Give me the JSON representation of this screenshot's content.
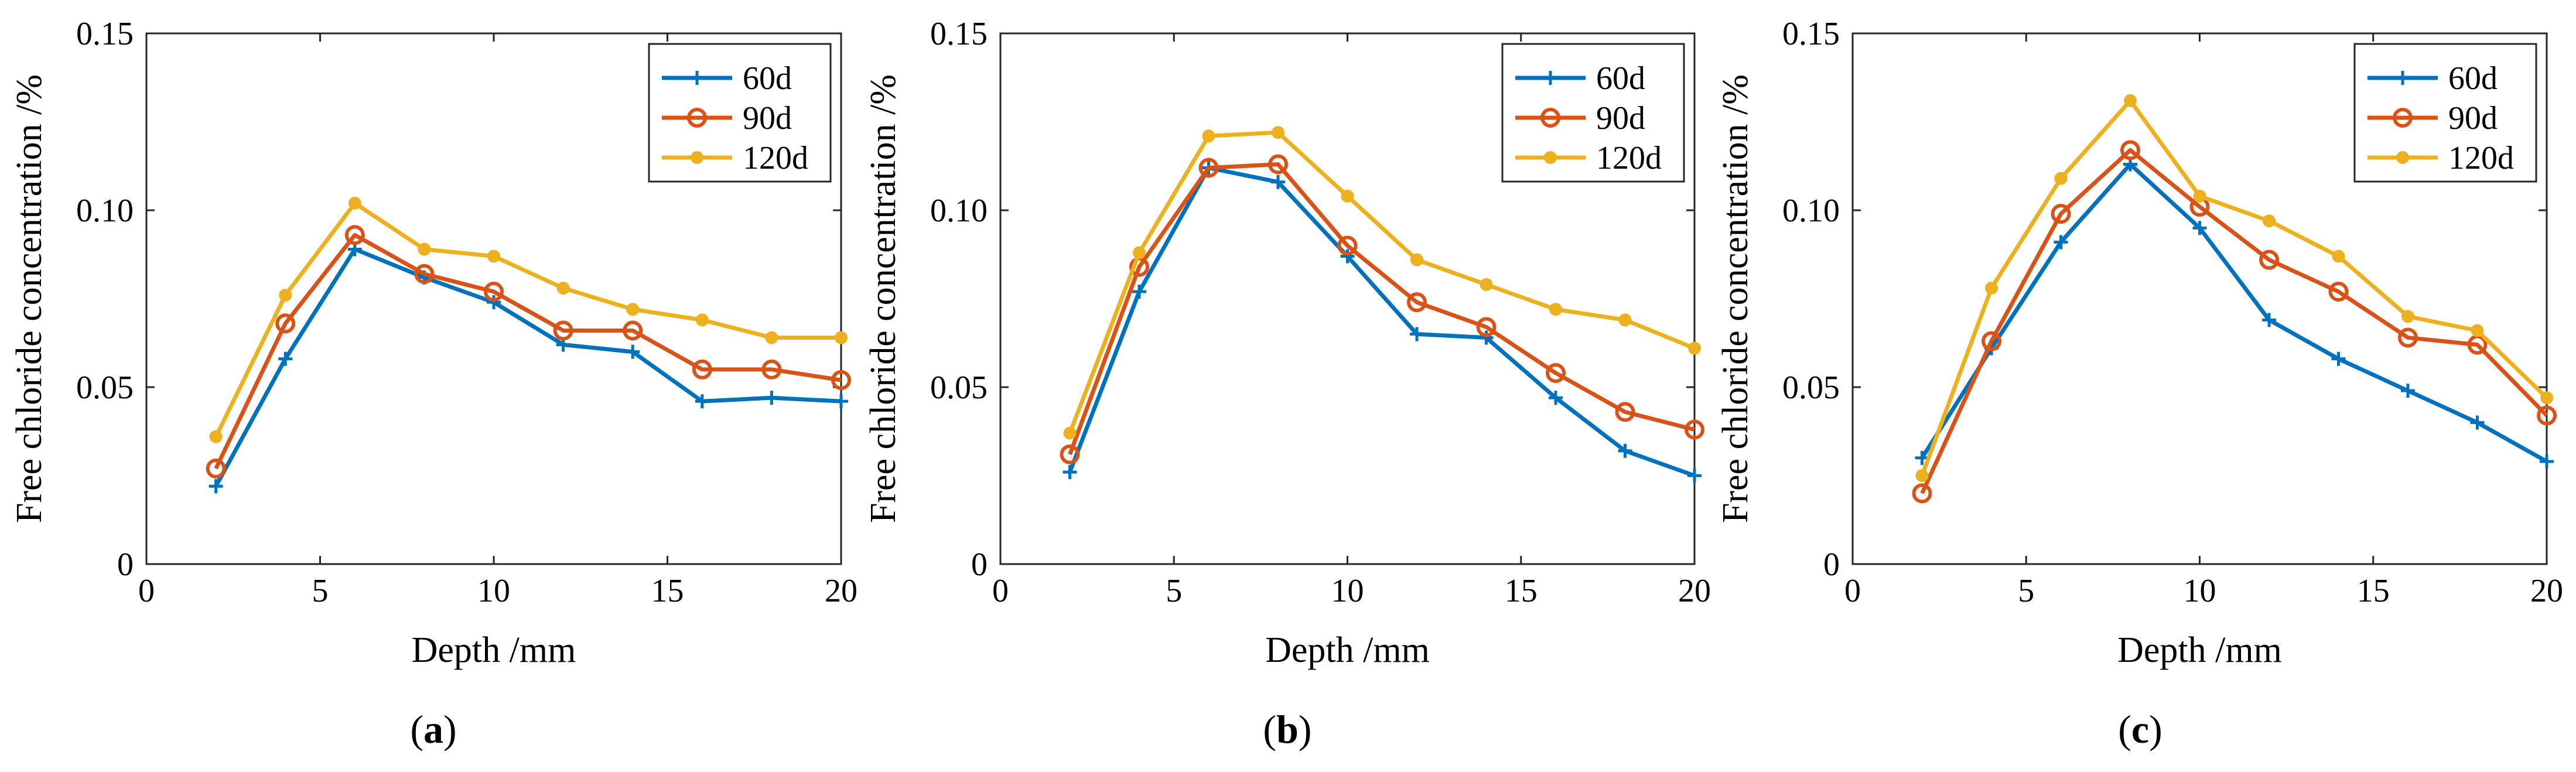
{
  "colors": {
    "60d": "#0072BD",
    "90d": "#D95319",
    "120d": "#EDB120"
  },
  "chart_data": [
    {
      "type": "line",
      "panel_label": {
        "open": "(",
        "letter": "a",
        "close": ")"
      },
      "xlabel": "Depth /mm",
      "ylabel": "Free chloride concentration /%",
      "xlim": [
        0,
        20
      ],
      "ylim": [
        0,
        0.15
      ],
      "xticks": [
        "0",
        "5",
        "10",
        "15",
        "20"
      ],
      "yticks": [
        "0",
        "0.05",
        "0.10",
        "0.15"
      ],
      "x": [
        2,
        4,
        6,
        8,
        10,
        12,
        14,
        16,
        18,
        20
      ],
      "legend_position": "top-right",
      "series": [
        {
          "name": "60d",
          "marker": "plus",
          "values": [
            0.022,
            0.058,
            0.089,
            0.081,
            0.074,
            0.062,
            0.06,
            0.046,
            0.047,
            0.046
          ]
        },
        {
          "name": "90d",
          "marker": "circle",
          "values": [
            0.027,
            0.068,
            0.093,
            0.082,
            0.077,
            0.066,
            0.066,
            0.055,
            0.055,
            0.052
          ]
        },
        {
          "name": "120d",
          "marker": "dot",
          "values": [
            0.036,
            0.076,
            0.102,
            0.089,
            0.087,
            0.078,
            0.072,
            0.069,
            0.064,
            0.064
          ]
        }
      ]
    },
    {
      "type": "line",
      "panel_label": {
        "open": "(",
        "letter": "b",
        "close": ")"
      },
      "xlabel": "Depth /mm",
      "ylabel": "Free chloride concentration /%",
      "xlim": [
        0,
        20
      ],
      "ylim": [
        0,
        0.15
      ],
      "xticks": [
        "0",
        "5",
        "10",
        "15",
        "20"
      ],
      "yticks": [
        "0",
        "0.05",
        "0.10",
        "0.15"
      ],
      "x": [
        2,
        4,
        6,
        8,
        10,
        12,
        14,
        16,
        18,
        20
      ],
      "legend_position": "top-right",
      "series": [
        {
          "name": "60d",
          "marker": "plus",
          "values": [
            0.026,
            0.077,
            0.112,
            0.108,
            0.087,
            0.065,
            0.064,
            0.047,
            0.032,
            0.025
          ]
        },
        {
          "name": "90d",
          "marker": "circle",
          "values": [
            0.031,
            0.084,
            0.112,
            0.113,
            0.09,
            0.074,
            0.067,
            0.054,
            0.043,
            0.038
          ]
        },
        {
          "name": "120d",
          "marker": "dot",
          "values": [
            0.037,
            0.088,
            0.121,
            0.122,
            0.104,
            0.086,
            0.079,
            0.072,
            0.069,
            0.061
          ]
        }
      ]
    },
    {
      "type": "line",
      "panel_label": {
        "open": "(",
        "letter": "c",
        "close": ")"
      },
      "xlabel": "Depth /mm",
      "ylabel": "Free chloride concentration /%",
      "xlim": [
        0,
        20
      ],
      "ylim": [
        0,
        0.15
      ],
      "xticks": [
        "0",
        "5",
        "10",
        "15",
        "20"
      ],
      "yticks": [
        "0",
        "0.05",
        "0.10",
        "0.15"
      ],
      "x": [
        2,
        4,
        6,
        8,
        10,
        12,
        14,
        16,
        18,
        20
      ],
      "legend_position": "top-right",
      "series": [
        {
          "name": "60d",
          "marker": "plus",
          "values": [
            0.03,
            0.061,
            0.091,
            0.113,
            0.095,
            0.069,
            0.058,
            0.049,
            0.04,
            0.029
          ]
        },
        {
          "name": "90d",
          "marker": "circle",
          "values": [
            0.02,
            0.063,
            0.099,
            0.117,
            0.101,
            0.086,
            0.077,
            0.064,
            0.062,
            0.042
          ]
        },
        {
          "name": "120d",
          "marker": "dot",
          "values": [
            0.025,
            0.078,
            0.109,
            0.131,
            0.104,
            0.097,
            0.087,
            0.07,
            0.066,
            0.047
          ]
        }
      ]
    }
  ]
}
